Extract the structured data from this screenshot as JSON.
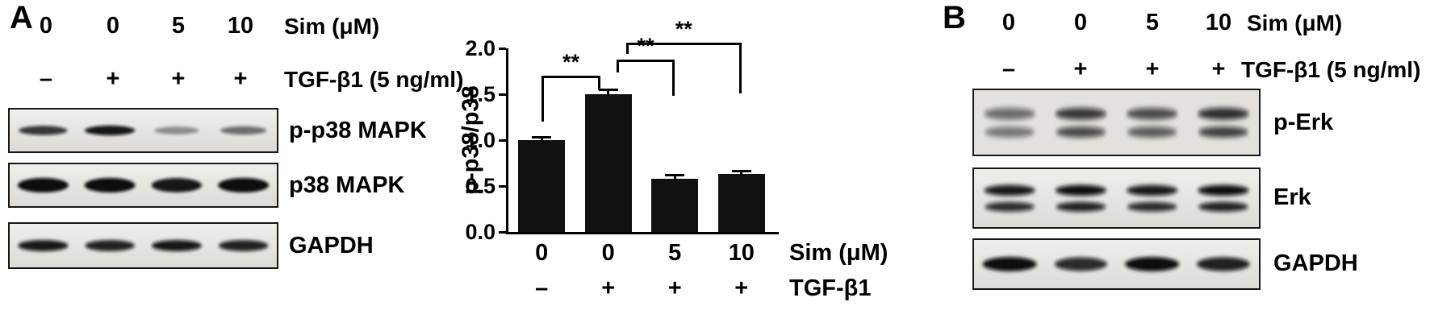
{
  "figure_bg": "#ffffff",
  "band_color": "#0a0a0a",
  "panel_a": {
    "label": "A",
    "dose_row": {
      "values": [
        "0",
        "0",
        "5",
        "10"
      ],
      "unit_label": "Sim (μM)"
    },
    "tgf_row": {
      "values": [
        "–",
        "+",
        "+",
        "+"
      ],
      "unit_label": "TGF-β1 (5 ng/ml)"
    },
    "blots": [
      {
        "label": "p-p38 MAPK",
        "bands_per_lane": 1,
        "band_scale": 1.0,
        "intensities": [
          0.8,
          0.95,
          0.4,
          0.55
        ]
      },
      {
        "label": "p38 MAPK",
        "bands_per_lane": 1,
        "band_scale": 1.45,
        "intensities": [
          1,
          1,
          0.95,
          1
        ]
      },
      {
        "label": "GAPDH",
        "bands_per_lane": 1,
        "band_scale": 1.1,
        "intensities": [
          0.95,
          0.9,
          0.95,
          0.9
        ]
      }
    ]
  },
  "panel_b": {
    "label": "B",
    "dose_row": {
      "values": [
        "0",
        "0",
        "5",
        "10"
      ],
      "unit_label": "Sim (μM)"
    },
    "tgf_row": {
      "values": [
        "–",
        "+",
        "+",
        "+"
      ],
      "unit_label": "TGF-β1 (5 ng/ml)"
    },
    "blots": [
      {
        "label": "p-Erk",
        "bands_per_lane": 2,
        "band_scale": 1.0,
        "bg": "#e4e1dc",
        "intensities": [
          0.55,
          0.8,
          0.7,
          0.85
        ]
      },
      {
        "label": "Erk",
        "bands_per_lane": 2,
        "band_scale": 1.0,
        "intensities": [
          0.95,
          1,
          0.95,
          1
        ]
      },
      {
        "label": "GAPDH",
        "bands_per_lane": 1,
        "band_scale": 1.25,
        "intensities": [
          1,
          0.85,
          1,
          0.9
        ]
      }
    ]
  },
  "chart_data": {
    "type": "bar",
    "title": "",
    "xlabel": "",
    "ylabel": "p-p38/p38",
    "ylim": [
      0,
      2.0
    ],
    "yticks": [
      0,
      0.5,
      1.0,
      1.5,
      2.0
    ],
    "ytick_labels": [
      "0.0",
      "0.5",
      "1.0",
      "1.5",
      "2.0"
    ],
    "categories": [
      "0",
      "0",
      "5",
      "10"
    ],
    "values": [
      1.0,
      1.5,
      0.58,
      0.63
    ],
    "errors": [
      0.03,
      0.04,
      0.03,
      0.03
    ],
    "bar_color": "#111111",
    "grid": false,
    "legend": false,
    "x_rows": [
      {
        "values": [
          "0",
          "0",
          "5",
          "10"
        ],
        "unit_label": "Sim (μM)"
      },
      {
        "values": [
          "–",
          "+",
          "+",
          "+"
        ],
        "unit_label": "TGF-β1"
      }
    ],
    "significance": [
      {
        "label": "**",
        "from": 0,
        "to": 1,
        "y": 1.7,
        "leg_from": 0.5,
        "leg_to": 0.16,
        "off_from": 0,
        "off_to": -10
      },
      {
        "label": "**",
        "from": 1,
        "to": 2,
        "y": 1.88,
        "leg_from": 0.14,
        "leg_to": 0.4,
        "off_from": 10,
        "off_to": 0
      },
      {
        "label": "**",
        "from": 1,
        "to": 3,
        "y": 2.06,
        "leg_from": 0.12,
        "leg_to": 0.55,
        "off_from": 22,
        "off_to": 0
      }
    ]
  }
}
